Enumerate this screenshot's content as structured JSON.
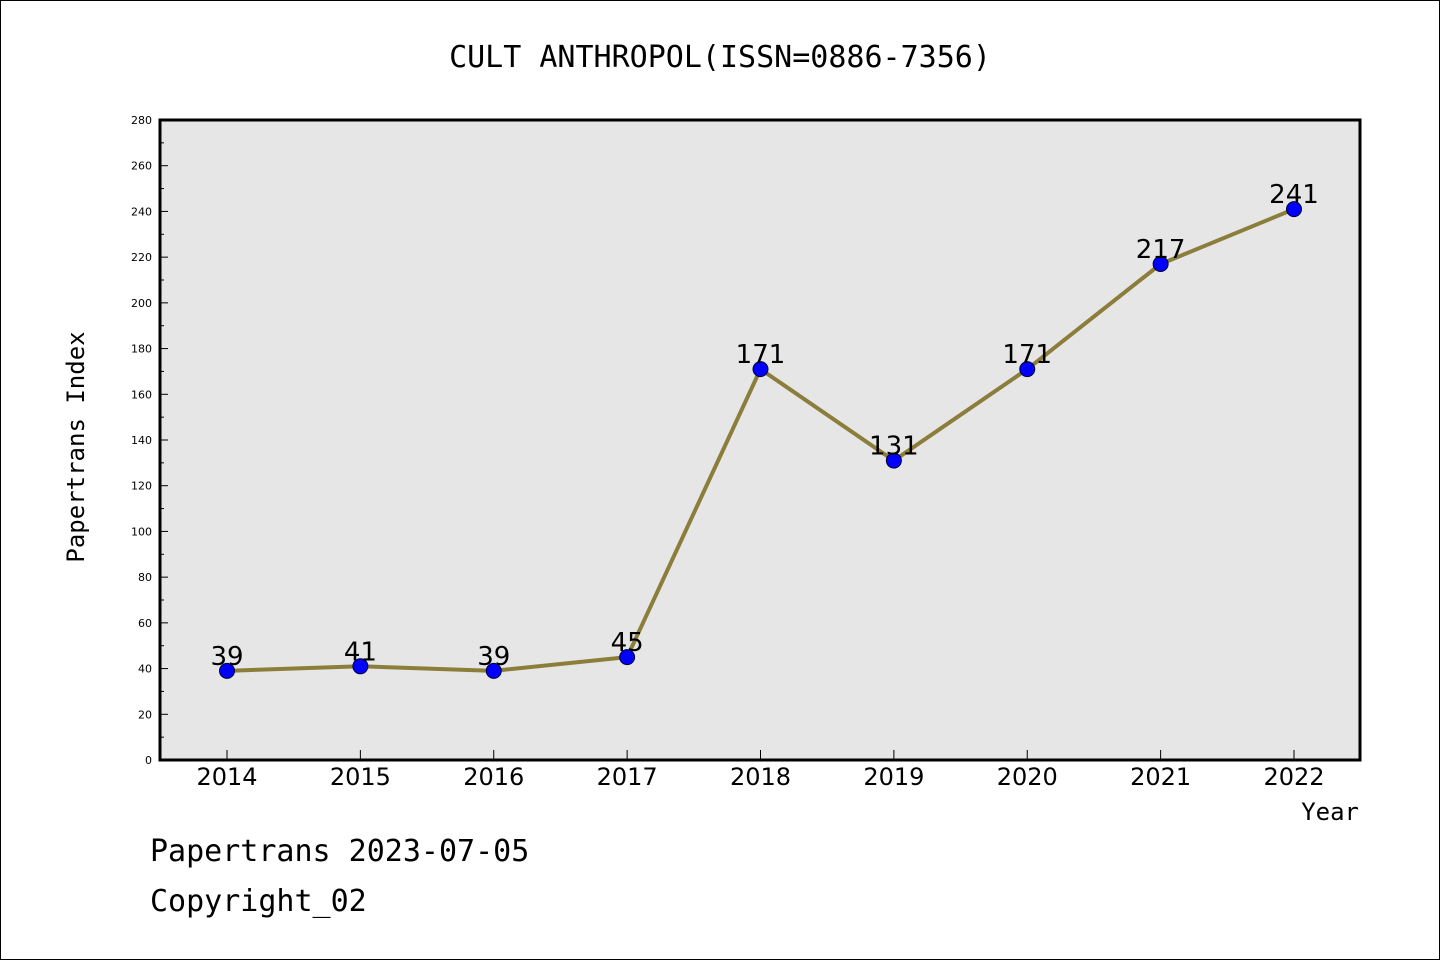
{
  "chart_data": {
    "type": "line",
    "title": "CULT ANTHROPOL(ISSN=0886-7356)",
    "xlabel": "Year",
    "ylabel": "Papertrans Index",
    "categories": [
      "2014",
      "2015",
      "2016",
      "2017",
      "2018",
      "2019",
      "2020",
      "2021",
      "2022"
    ],
    "series": [
      {
        "values": [
          39,
          41,
          39,
          45,
          171,
          131,
          171,
          217,
          241
        ]
      }
    ],
    "ylim": [
      0,
      280
    ],
    "yticks": [
      0,
      20,
      40,
      60,
      80,
      100,
      120,
      140,
      160,
      180,
      200,
      220,
      240,
      260,
      280
    ],
    "grid": false,
    "line_color": "#8b7d3a",
    "marker_color": "#0000ff",
    "plot_background": "#e6e6e6"
  },
  "footer": {
    "line1": "Papertrans 2023-07-05",
    "line2": "Copyright_02"
  }
}
